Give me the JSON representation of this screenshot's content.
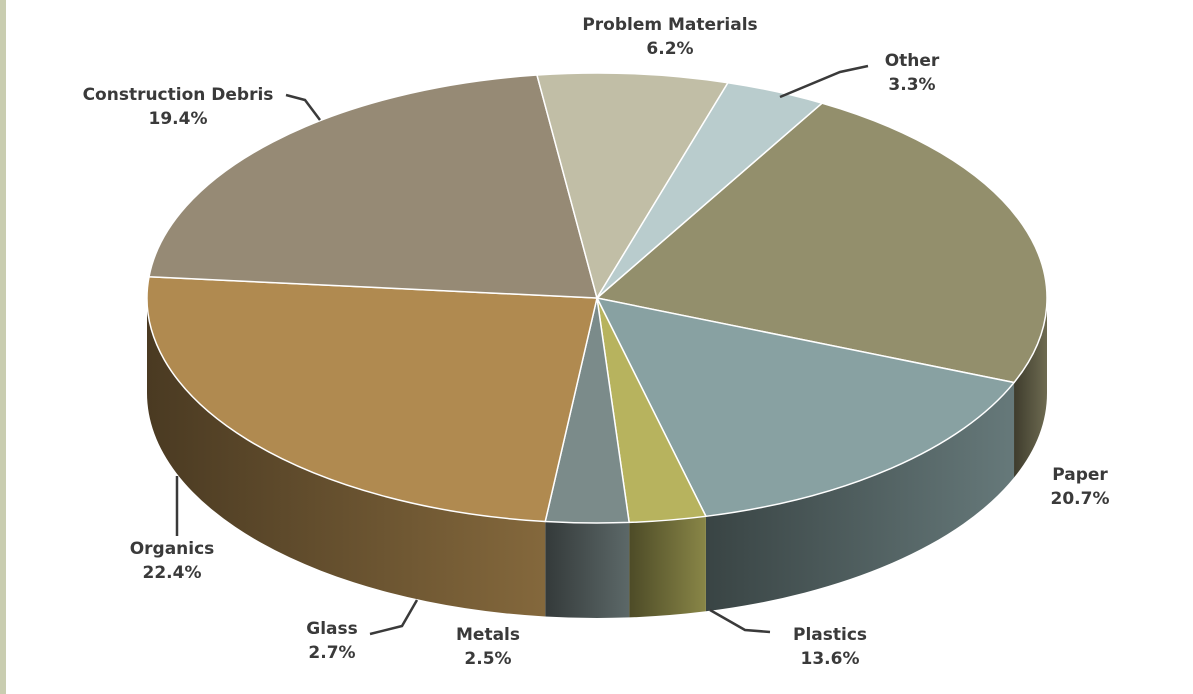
{
  "chart_data": {
    "type": "pie",
    "three_d": true,
    "slices": [
      {
        "label": "Paper",
        "pct_text": "20.7%",
        "value": 20.7,
        "color": "#938f6c"
      },
      {
        "label": "Plastics",
        "pct_text": "13.6%",
        "value": 13.6,
        "color": "#88a1a2"
      },
      {
        "label": "Metals",
        "pct_text": "2.5%",
        "value": 2.5,
        "color": "#b7b35e"
      },
      {
        "label": "Glass",
        "pct_text": "2.7%",
        "value": 2.7,
        "color": "#7b8b8a"
      },
      {
        "label": "Organics",
        "pct_text": "22.4%",
        "value": 22.4,
        "color": "#b08a50"
      },
      {
        "label": "Construction Debris",
        "pct_text": "19.4%",
        "value": 19.4,
        "color": "#968a75"
      },
      {
        "label": "Problem Materials",
        "pct_text": "6.2%",
        "value": 6.2,
        "color": "#c1bea6"
      },
      {
        "label": "Other",
        "pct_text": "3.3%",
        "value": 3.3,
        "color": "#b9cccd"
      }
    ]
  }
}
